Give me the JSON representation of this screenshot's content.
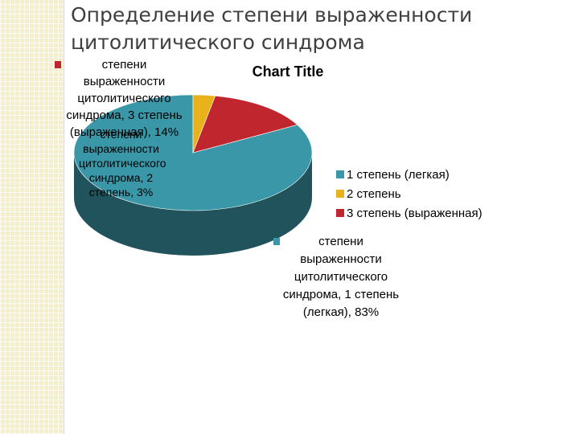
{
  "slide_title": "Определение степени выраженности цитолитического синдрома",
  "chart_data": {
    "type": "pie",
    "title": "Chart Title",
    "categories": [
      "1 степень (легкая)",
      "2 степень",
      "3 степень (выраженная)"
    ],
    "values": [
      83,
      3,
      14
    ],
    "colors": [
      "#3a97a8",
      "#e8b21c",
      "#c0262d"
    ],
    "legend_position": "right",
    "data_labels": [
      "степени выраженности цитолитического синдрома, 1 степень (легкая), 83%",
      "степени выраженности цитолитического синдрома, 2 степень, 3%",
      "степени выраженности цитолитического синдрома, 3 степень (выраженная), 14%"
    ]
  }
}
